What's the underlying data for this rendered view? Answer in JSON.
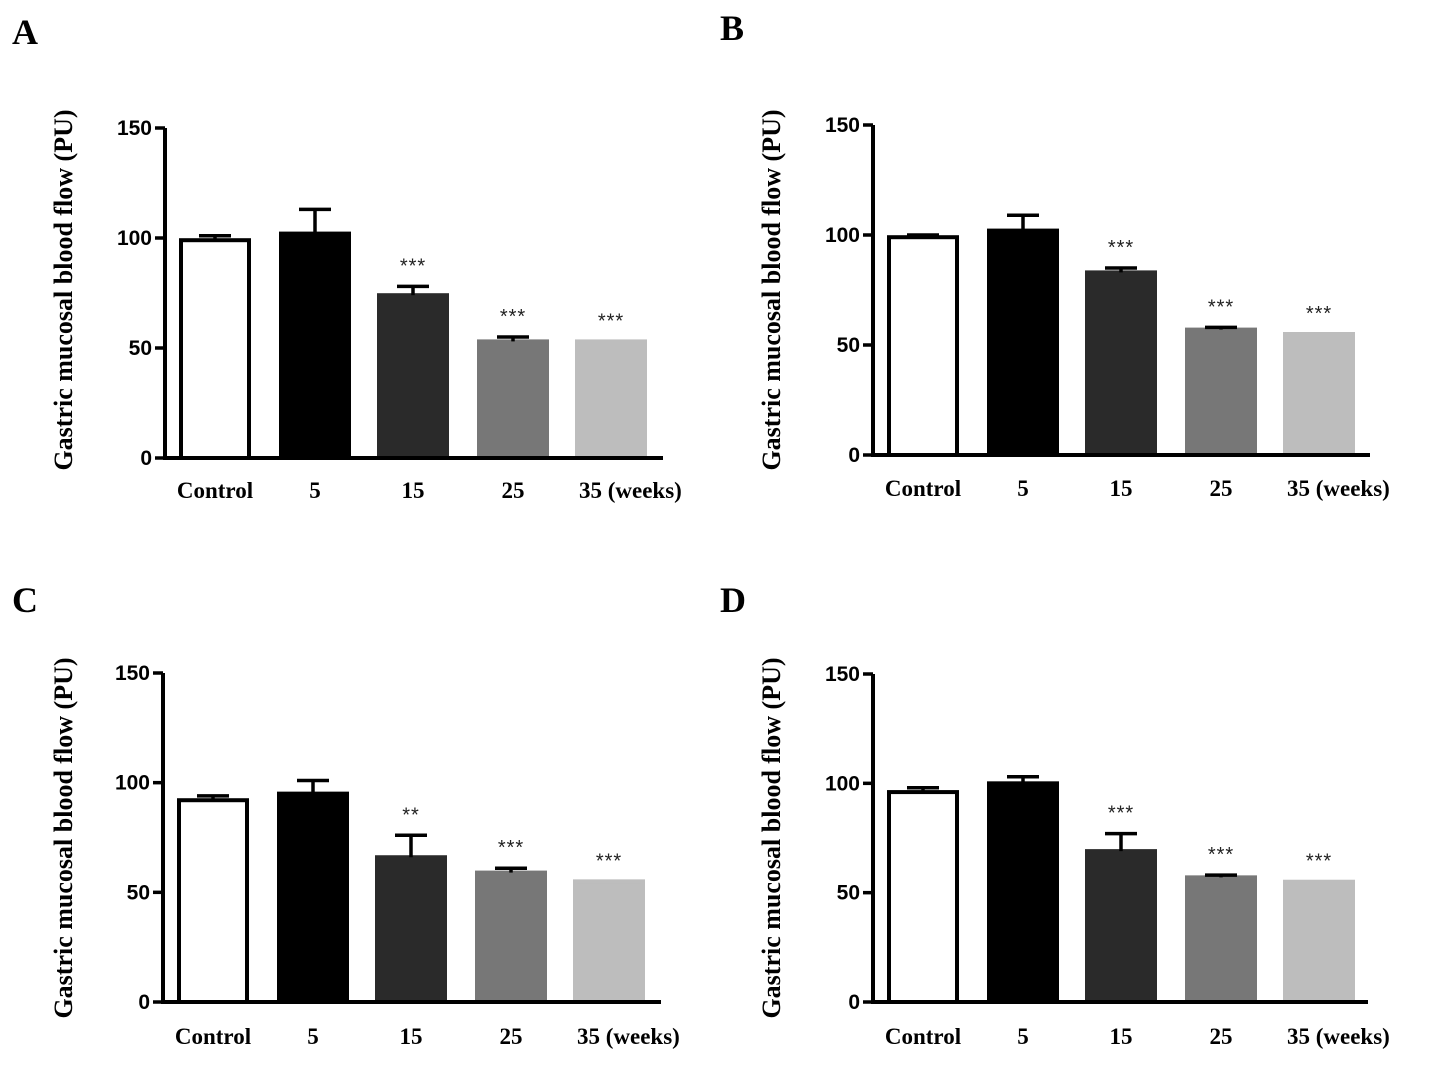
{
  "chart_data": [
    {
      "panel": "A",
      "type": "bar",
      "ylabel": "Gastric mucosal blood flow  (PU)",
      "ylim": [
        0,
        150
      ],
      "yticks": [
        "0",
        "50",
        "100",
        "150"
      ],
      "categories": [
        "Control",
        "5",
        "15",
        "25",
        "35 (weeks)"
      ],
      "values": [
        99,
        102,
        74,
        53,
        53
      ],
      "errors": [
        2,
        11,
        4,
        2,
        0
      ],
      "significance": [
        "",
        "",
        "***",
        "***",
        "***"
      ],
      "colors": [
        "#ffffff",
        "#000000",
        "#2a2a2a",
        "#777777",
        "#bdbdbd"
      ]
    },
    {
      "panel": "B",
      "type": "bar",
      "ylabel": "Gastric mucosal blood flow  (PU)",
      "ylim": [
        0,
        150
      ],
      "yticks": [
        "0",
        "50",
        "100",
        "150"
      ],
      "categories": [
        "Control",
        "5",
        "15",
        "25",
        "35 (weeks)"
      ],
      "values": [
        99,
        102,
        83,
        57,
        55
      ],
      "errors": [
        1,
        7,
        2,
        1,
        0
      ],
      "significance": [
        "",
        "",
        "***",
        "***",
        "***"
      ],
      "colors": [
        "#ffffff",
        "#000000",
        "#2a2a2a",
        "#777777",
        "#bdbdbd"
      ]
    },
    {
      "panel": "C",
      "type": "bar",
      "ylabel": "Gastric mucosal blood flow  (PU)",
      "ylim": [
        0,
        150
      ],
      "yticks": [
        "0",
        "50",
        "100",
        "150"
      ],
      "categories": [
        "Control",
        "5",
        "15",
        "25",
        "35 (weeks)"
      ],
      "values": [
        92,
        95,
        66,
        59,
        55
      ],
      "errors": [
        2,
        6,
        10,
        2,
        0
      ],
      "significance": [
        "",
        "",
        "**",
        "***",
        "***"
      ],
      "colors": [
        "#ffffff",
        "#000000",
        "#2a2a2a",
        "#777777",
        "#bdbdbd"
      ]
    },
    {
      "panel": "D",
      "type": "bar",
      "ylabel": "Gastric mucosal blood flow  (PU)",
      "ylim": [
        0,
        150
      ],
      "yticks": [
        "0",
        "50",
        "100",
        "150"
      ],
      "categories": [
        "Control",
        "5",
        "15",
        "25",
        "35 (weeks)"
      ],
      "values": [
        96,
        100,
        69,
        57,
        55
      ],
      "errors": [
        2,
        3,
        8,
        1,
        0
      ],
      "significance": [
        "",
        "",
        "***",
        "***",
        "***"
      ],
      "colors": [
        "#ffffff",
        "#000000",
        "#2a2a2a",
        "#777777",
        "#bdbdbd"
      ]
    }
  ]
}
